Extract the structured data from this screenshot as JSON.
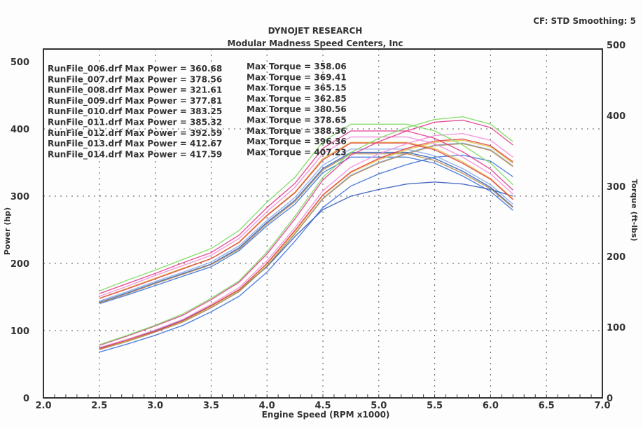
{
  "chart_data": {
    "type": "line",
    "title": "DYNOJET RESEARCH",
    "subtitle": "Modular Madness Speed Centers, Inc",
    "settings": "CF: STD  Smoothing: 5",
    "xlabel": "Engine Speed (RPM x1000)",
    "ylabel": "Power (hp)",
    "y2label": "Torque (ft-lbs)",
    "xlim": [
      2.0,
      7.0
    ],
    "ylim": [
      0,
      500
    ],
    "y2lim": [
      0,
      500
    ],
    "grid": true,
    "x_ticks": [
      "2.0",
      "2.5",
      "3.0",
      "3.5",
      "4.0",
      "4.5",
      "5.0",
      "5.5",
      "6.0",
      "6.5",
      "7.0"
    ],
    "y_ticks": [
      "0",
      "100",
      "200",
      "300",
      "400",
      "500"
    ],
    "y2_ticks": [
      "0",
      "100",
      "200",
      "300",
      "400",
      "500"
    ],
    "x": [
      2.5,
      2.75,
      3.0,
      3.25,
      3.5,
      3.75,
      4.0,
      4.25,
      4.5,
      4.75,
      5.0,
      5.25,
      5.5,
      5.75,
      6.0,
      6.2
    ],
    "series": [
      {
        "name": "RunFile_006.drf",
        "max_power_label": "RunFile_006.drf Max Power = 360.68",
        "max_torque_label": "Max Torque = 358.06",
        "color": "#3a6fd8",
        "power": [
          68,
          80,
          93,
          108,
          128,
          151,
          187,
          233,
          283,
          315,
          333,
          347,
          358,
          361,
          352,
          329
        ],
        "torque": [
          140,
          153,
          167,
          181,
          195,
          219,
          256,
          288,
          335,
          358,
          358,
          358,
          349,
          330,
          307,
          279
        ]
      },
      {
        "name": "RunFile_007.drf",
        "max_power_label": "RunFile_007.drf Max Power = 378.56",
        "max_torque_label": "Max Torque = 369.41",
        "color": "#7fa7ea",
        "power": [
          72,
          84,
          98,
          113,
          134,
          158,
          196,
          244,
          297,
          331,
          350,
          364,
          376,
          379,
          369,
          345
        ],
        "torque": [
          144,
          158,
          173,
          187,
          202,
          226,
          264,
          298,
          346,
          370,
          370,
          370,
          360,
          341,
          317,
          288
        ]
      },
      {
        "name": "RunFile_008.drf",
        "max_power_label": "RunFile_008.drf Max Power = 321.61",
        "max_torque_label": "Max Torque = 365.15",
        "color": "#2b55b8",
        "power": [
          74,
          87,
          100,
          116,
          137,
          160,
          195,
          240,
          280,
          300,
          310,
          318,
          321,
          318,
          310,
          300
        ],
        "torque": [
          142,
          156,
          171,
          185,
          199,
          223,
          261,
          294,
          341,
          365,
          365,
          365,
          356,
          337,
          313,
          284
        ]
      },
      {
        "name": "RunFile_009.drf",
        "max_power_label": "RunFile_009.drf Max Power = 377.81",
        "max_torque_label": "Max Torque = 362.85",
        "color": "#b08a4a",
        "power": [
          72,
          84,
          98,
          113,
          134,
          158,
          196,
          244,
          296,
          330,
          349,
          363,
          375,
          378,
          368,
          344
        ],
        "torque": [
          141,
          155,
          170,
          184,
          198,
          221,
          259,
          292,
          339,
          363,
          363,
          363,
          353,
          334,
          311,
          283
        ]
      },
      {
        "name": "RunFile_010.drf",
        "max_power_label": "RunFile_010.drf Max Power = 383.25",
        "max_torque_label": "Max Torque = 380.56",
        "color": "#e0c040",
        "power": [
          73,
          85,
          99,
          114,
          136,
          160,
          199,
          247,
          301,
          335,
          354,
          369,
          380,
          383,
          373,
          349
        ],
        "torque": [
          148,
          163,
          178,
          193,
          207,
          232,
          272,
          306,
          356,
          380,
          380,
          380,
          371,
          351,
          326,
          296
        ]
      },
      {
        "name": "RunFile_011.drf",
        "max_power_label": "RunFile_011.drf Max Power = 385.32",
        "max_torque_label": "Max Torque = 378.65",
        "color": "#e03a3a",
        "power": [
          73,
          86,
          99,
          115,
          137,
          161,
          200,
          249,
          302,
          336,
          356,
          371,
          382,
          385,
          375,
          351
        ],
        "torque": [
          148,
          162,
          177,
          192,
          207,
          231,
          271,
          305,
          354,
          379,
          379,
          379,
          369,
          349,
          325,
          295
        ]
      },
      {
        "name": "RunFile_012.drf",
        "max_power_label": "RunFile_012.drf Max Power = 392.59",
        "max_torque_label": "Max Torque = 388.36",
        "color": "#f08ad8",
        "power": [
          75,
          87,
          101,
          117,
          139,
          164,
          204,
          253,
          308,
          343,
          363,
          378,
          390,
          393,
          383,
          358
        ],
        "torque": [
          151,
          166,
          182,
          197,
          212,
          237,
          277,
          313,
          363,
          388,
          388,
          388,
          378,
          358,
          333,
          303
        ]
      },
      {
        "name": "RunFile_013.drf",
        "max_power_label": "RunFile_013.drf Max Power = 412.67",
        "max_torque_label": "Max Torque = 396.36",
        "color": "#e0368c",
        "power": [
          78,
          92,
          107,
          123,
          146,
          172,
          214,
          266,
          324,
          361,
          381,
          397,
          410,
          413,
          402,
          376
        ],
        "torque": [
          155,
          170,
          185,
          201,
          216,
          242,
          283,
          319,
          371,
          397,
          397,
          397,
          386,
          366,
          340,
          309
        ]
      },
      {
        "name": "RunFile_014.drf",
        "max_power_label": "RunFile_014.drf Max Power = 417.59",
        "max_torque_label": "Max Torque = 407.23",
        "color": "#7ad85a",
        "power": [
          79,
          93,
          108,
          125,
          148,
          174,
          217,
          270,
          328,
          365,
          386,
          402,
          414,
          418,
          407,
          381
        ],
        "torque": [
          159,
          175,
          190,
          206,
          222,
          249,
          291,
          328,
          381,
          407,
          407,
          407,
          397,
          376,
          349,
          317
        ]
      }
    ]
  }
}
